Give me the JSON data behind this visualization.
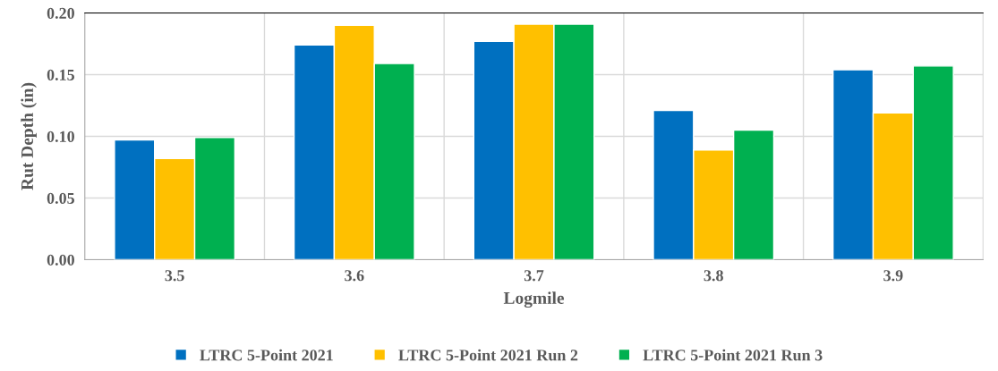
{
  "chart_data": {
    "type": "bar",
    "xlabel": "Logmile",
    "ylabel": "Rut Depth (in)",
    "categories": [
      "3.5",
      "3.6",
      "3.7",
      "3.8",
      "3.9"
    ],
    "series": [
      {
        "name": "LTRC 5-Point 2021",
        "color": "#0070c0",
        "values": [
          0.097,
          0.174,
          0.177,
          0.121,
          0.154
        ]
      },
      {
        "name": "LTRC 5-Point 2021 Run 2",
        "color": "#ffc000",
        "values": [
          0.082,
          0.19,
          0.191,
          0.089,
          0.119
        ]
      },
      {
        "name": "LTRC 5-Point 2021 Run 3",
        "color": "#00b050",
        "values": [
          0.099,
          0.159,
          0.191,
          0.105,
          0.157
        ]
      }
    ],
    "ylim": [
      0,
      0.2
    ],
    "yticks": [
      {
        "value": 0,
        "label": "0.00"
      },
      {
        "value": 0.05,
        "label": "0.05"
      },
      {
        "value": 0.1,
        "label": "0.10"
      },
      {
        "value": 0.15,
        "label": "0.15"
      },
      {
        "value": 0.2,
        "label": "0.20"
      }
    ],
    "grid": true,
    "legend": "bottom"
  }
}
